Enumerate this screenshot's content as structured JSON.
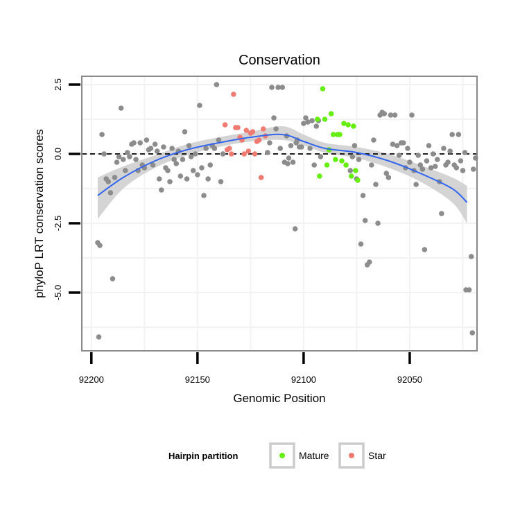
{
  "chart_data": {
    "type": "scatter",
    "title": "Conservation",
    "xlabel": "Genomic Position",
    "ylabel": "phyloP LRT conservation scores",
    "xlim": [
      92204.5,
      92018.3
    ],
    "x_reversed": true,
    "ylim": [
      -7.1,
      2.8
    ],
    "x_ticks": [
      92200,
      92150,
      92100,
      92050
    ],
    "y_ticks": [
      2.5,
      0.0,
      -2.5,
      -5.0
    ],
    "x_tick_labels": [
      "92200",
      "92150",
      "92100",
      "92050"
    ],
    "y_tick_labels": [
      "2.5",
      "0.0",
      "-2.5",
      "-5.0"
    ],
    "grid": true,
    "reference_line": {
      "y": 0,
      "style": "dashed"
    },
    "colors": {
      "other": "#8c8c8c",
      "mature": "#66ee11",
      "star": "#f07b72",
      "smooth_line": "#3366ee",
      "ribbon": "#cccccc",
      "panel_border": "#8a8a8a",
      "grid": "#f2f2f2"
    },
    "legend": {
      "title": "Hairpin partition",
      "position": "bottom",
      "entries": [
        {
          "label": "Mature",
          "color": "#66ee11"
        },
        {
          "label": "Star",
          "color": "#f07b72"
        }
      ]
    },
    "smooth": {
      "x": [
        92197,
        92185,
        92170,
        92155,
        92140,
        92125,
        92110,
        92100,
        92090,
        92075,
        92060,
        92045,
        92030,
        92023
      ],
      "y": [
        -1.5,
        -0.85,
        -0.25,
        0.15,
        0.4,
        0.6,
        0.7,
        0.45,
        0.2,
        0.05,
        -0.25,
        -0.7,
        -1.25,
        -1.75
      ],
      "lower": [
        -2.35,
        -1.25,
        -0.5,
        -0.05,
        0.25,
        0.45,
        0.5,
        0.3,
        0.05,
        -0.15,
        -0.5,
        -1.0,
        -1.75,
        -2.5
      ],
      "upper": [
        -0.85,
        -0.45,
        -0.05,
        0.35,
        0.6,
        0.8,
        1.0,
        0.7,
        0.4,
        0.25,
        0.0,
        -0.4,
        -0.85,
        -1.15
      ]
    },
    "series": [
      {
        "group": "other",
        "points": [
          [
            92197,
            -3.2
          ],
          [
            92196,
            -3.3
          ],
          [
            92195,
            0.7
          ],
          [
            92194,
            0.0
          ],
          [
            92193,
            -0.9
          ],
          [
            92192,
            -1.0
          ],
          [
            92191,
            -1.4
          ],
          [
            92190,
            -4.5
          ],
          [
            92189,
            -0.85
          ],
          [
            92188,
            -0.3
          ],
          [
            92187,
            -0.1
          ],
          [
            92186,
            1.65
          ],
          [
            92185,
            -0.2
          ],
          [
            92184,
            -0.6
          ],
          [
            92183,
            0.05
          ],
          [
            92182,
            -0.1
          ],
          [
            92181,
            0.35
          ],
          [
            92180,
            0.4
          ],
          [
            92179,
            -0.2
          ],
          [
            92178,
            -0.6
          ],
          [
            92177,
            0.4
          ],
          [
            92176,
            -0.4
          ],
          [
            92175,
            -0.5
          ],
          [
            92174,
            0.5
          ],
          [
            92173,
            0.15
          ],
          [
            92172,
            0.2
          ],
          [
            92171,
            -0.4
          ],
          [
            92170,
            0.35
          ],
          [
            92169,
            0.1
          ],
          [
            92168,
            -0.9
          ],
          [
            92167,
            -1.3
          ],
          [
            92166,
            0.25
          ],
          [
            92165,
            -0.5
          ],
          [
            92164,
            -0.6
          ],
          [
            92163,
            -1.0
          ],
          [
            92162,
            0.2
          ],
          [
            92161,
            -0.2
          ],
          [
            92160,
            -0.35
          ],
          [
            92159,
            0.1
          ],
          [
            92158,
            -0.8
          ],
          [
            92157,
            -0.2
          ],
          [
            92156,
            0.8
          ],
          [
            92155,
            -0.9
          ],
          [
            92154,
            0.3
          ],
          [
            92153,
            -0.1
          ],
          [
            92152,
            -0.6
          ],
          [
            92151,
            0.0
          ],
          [
            92150,
            -0.75
          ],
          [
            92149,
            1.75
          ],
          [
            92148,
            -0.5
          ],
          [
            92147,
            -1.5
          ],
          [
            92146,
            0.2
          ],
          [
            92145,
            -0.9
          ],
          [
            92144,
            -0.4
          ],
          [
            92143,
            0.3
          ],
          [
            92142,
            0.2
          ],
          [
            92141,
            2.5
          ],
          [
            92140,
            0.5
          ],
          [
            92139,
            -1.0
          ],
          [
            92138,
            0.0
          ],
          [
            92117,
            0.05
          ],
          [
            92116,
            0.4
          ],
          [
            92115,
            2.4
          ],
          [
            92114,
            1.3
          ],
          [
            92113,
            0.9
          ],
          [
            92112,
            2.4
          ],
          [
            92111,
            0.2
          ],
          [
            92110,
            2.4
          ],
          [
            92109,
            -0.3
          ],
          [
            92108,
            0.65
          ],
          [
            92107,
            -0.15
          ],
          [
            92106,
            0.3
          ],
          [
            92105,
            -0.3
          ],
          [
            92104,
            -2.7
          ],
          [
            92103,
            0.5
          ],
          [
            92102,
            0.25
          ],
          [
            92101,
            0.25
          ],
          [
            92100,
            1.1
          ],
          [
            92099,
            1.3
          ],
          [
            92098,
            1.15
          ],
          [
            92097,
            0.2
          ],
          [
            92096,
            1.2
          ],
          [
            92095,
            -0.4
          ],
          [
            92094,
            1.0
          ],
          [
            92093,
            1.2
          ],
          [
            92092,
            -0.1
          ],
          [
            92078,
            -0.6
          ],
          [
            92077,
            -0.1
          ],
          [
            92076,
            0.3
          ],
          [
            92075,
            -0.9
          ],
          [
            92074,
            -0.2
          ],
          [
            92073,
            -3.25
          ],
          [
            92072,
            -1.5
          ],
          [
            92071,
            -2.4
          ],
          [
            92070,
            -4.0
          ],
          [
            92069,
            -3.9
          ],
          [
            92068,
            -0.4
          ],
          [
            92067,
            0.5
          ],
          [
            92066,
            -1.1
          ],
          [
            92065,
            -2.5
          ],
          [
            92064,
            1.4
          ],
          [
            92063,
            1.5
          ],
          [
            92062,
            1.45
          ],
          [
            92061,
            -0.7
          ],
          [
            92060,
            -0.85
          ],
          [
            92059,
            1.4
          ],
          [
            92058,
            0.35
          ],
          [
            92057,
            1.4
          ],
          [
            92056,
            0.3
          ],
          [
            92055,
            -0.05
          ],
          [
            92054,
            0.4
          ],
          [
            92053,
            0.4
          ],
          [
            92052,
            -0.5
          ],
          [
            92051,
            0.2
          ],
          [
            92050,
            -0.3
          ],
          [
            92049,
            1.4
          ],
          [
            92048,
            -0.6
          ],
          [
            92047,
            -1.1
          ],
          [
            92046,
            -0.05
          ],
          [
            92045,
            -0.4
          ],
          [
            92044,
            -0.55
          ],
          [
            92043,
            -3.45
          ],
          [
            92042,
            -0.25
          ],
          [
            92041,
            0.3
          ],
          [
            92040,
            -0.5
          ],
          [
            92039,
            0.0
          ],
          [
            92038,
            -0.45
          ],
          [
            92037,
            -0.2
          ],
          [
            92036,
            -1.0
          ],
          [
            92035,
            -2.15
          ],
          [
            92034,
            0.2
          ],
          [
            92033,
            -0.4
          ],
          [
            92032,
            -0.3
          ],
          [
            92031,
            0.1
          ],
          [
            92030,
            0.7
          ],
          [
            92029,
            -0.4
          ],
          [
            92028,
            -0.5
          ],
          [
            92027,
            0.7
          ],
          [
            92026,
            -0.25
          ],
          [
            92025,
            -0.6
          ],
          [
            92024,
            0.05
          ],
          [
            92022,
            -4.9
          ],
          [
            92021,
            -3.7
          ],
          [
            92020,
            -0.55
          ],
          [
            92019,
            -0.15
          ],
          [
            92196.5,
            -6.6
          ],
          [
            92020.5,
            -6.45
          ],
          [
            92023.5,
            -4.9
          ],
          [
            92107.5,
            -0.35
          ],
          [
            92103.5,
            0.4
          ]
        ]
      },
      {
        "group": "star",
        "points": [
          [
            92137,
            1.05
          ],
          [
            92136,
            0.15
          ],
          [
            92135,
            0.2
          ],
          [
            92134,
            0.0
          ],
          [
            92133,
            2.15
          ],
          [
            92132,
            0.95
          ],
          [
            92131,
            0.95
          ],
          [
            92130,
            0.6
          ],
          [
            92129,
            0.5
          ],
          [
            92128,
            0.0
          ],
          [
            92127,
            0.85
          ],
          [
            92126,
            0.1
          ],
          [
            92125,
            0.75
          ],
          [
            92124,
            0.8
          ],
          [
            92123,
            0.0
          ],
          [
            92122,
            0.45
          ],
          [
            92121,
            0.5
          ],
          [
            92120,
            -0.85
          ],
          [
            92119,
            0.9
          ],
          [
            92118,
            0.65
          ]
        ]
      },
      {
        "group": "mature",
        "points": [
          [
            92093.5,
            1.25
          ],
          [
            92092.5,
            -0.8
          ],
          [
            92091,
            2.35
          ],
          [
            92090,
            1.25
          ],
          [
            92089,
            -0.4
          ],
          [
            92088,
            0.15
          ],
          [
            92087,
            1.45
          ],
          [
            92086,
            0.7
          ],
          [
            92085,
            -0.2
          ],
          [
            92084,
            0.7
          ],
          [
            92083,
            0.7
          ],
          [
            92082,
            -0.25
          ],
          [
            92081,
            1.1
          ],
          [
            92080,
            -0.4
          ],
          [
            92079,
            1.05
          ],
          [
            92077.5,
            -0.8
          ],
          [
            92076.5,
            1.0
          ],
          [
            92075.5,
            -0.6
          ],
          [
            92074.5,
            -0.95
          ]
        ]
      }
    ]
  }
}
